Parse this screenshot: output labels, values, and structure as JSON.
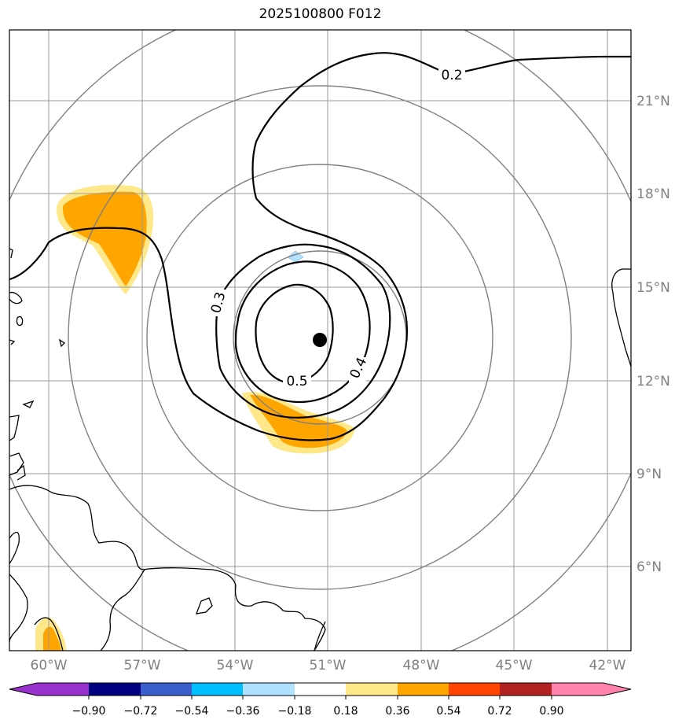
{
  "title": "2025100800 F012",
  "map": {
    "lon_labels": [
      "60°W",
      "57°W",
      "54°W",
      "51°W",
      "48°W",
      "45°W",
      "42°W"
    ],
    "lat_labels": [
      "21°N",
      "18°N",
      "15°N",
      "12°N",
      "9°N",
      "6°N"
    ],
    "contour_labels": [
      "0.2",
      "0.3",
      "0.4",
      "0.5"
    ],
    "center_marker": "storm-center",
    "range_rings": 4
  },
  "colorbar": {
    "ticks": [
      "−0.90",
      "−0.72",
      "−0.54",
      "−0.36",
      "−0.18",
      "0.18",
      "0.36",
      "0.54",
      "0.72",
      "0.90"
    ],
    "colors": [
      "#9932cc",
      "#000080",
      "#3a5fcd",
      "#00bfff",
      "#b0e2ff",
      "#ffffff",
      "#ffe88a",
      "#ffa500",
      "#ff4500",
      "#b22222",
      "#ff82ab"
    ]
  }
}
